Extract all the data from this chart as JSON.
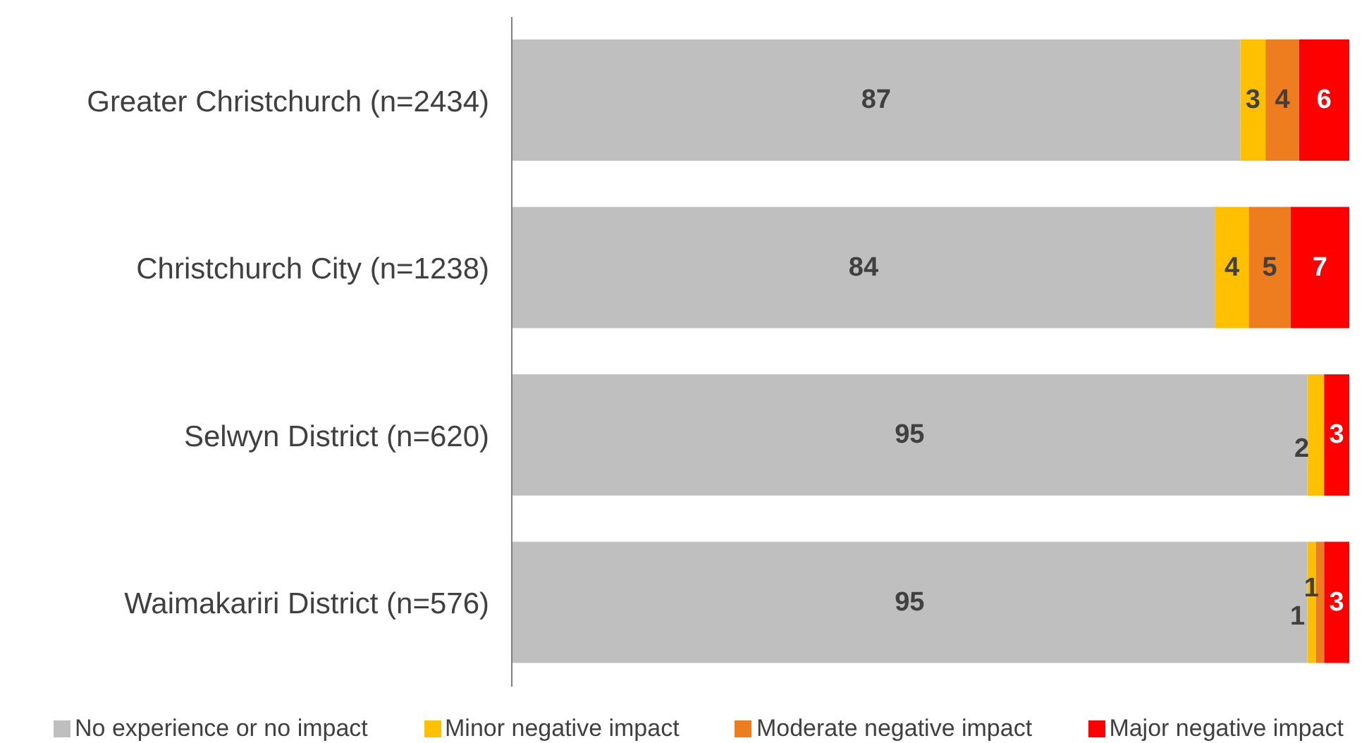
{
  "chart_data": {
    "type": "bar",
    "orientation": "horizontal",
    "stacked": true,
    "categories": [
      "Greater Christchurch (n=2434)",
      "Christchurch City (n=1238)",
      "Selwyn District (n=620)",
      "Waimakariri District (n=576)"
    ],
    "series": [
      {
        "name": "No experience or no impact",
        "color": "#bfbfbf",
        "values": [
          87,
          84,
          95,
          95
        ]
      },
      {
        "name": "Minor negative impact",
        "color": "#ffc000",
        "values": [
          3,
          4,
          2,
          1
        ]
      },
      {
        "name": "Moderate negative impact",
        "color": "#ed7d1e",
        "values": [
          4,
          5,
          null,
          1
        ]
      },
      {
        "name": "Major negative impact",
        "color": "#ff0000",
        "values": [
          6,
          7,
          3,
          3
        ]
      }
    ],
    "xlim": [
      0,
      100
    ],
    "tick_labels": "y",
    "data_labels": true,
    "legend": "bottom"
  }
}
